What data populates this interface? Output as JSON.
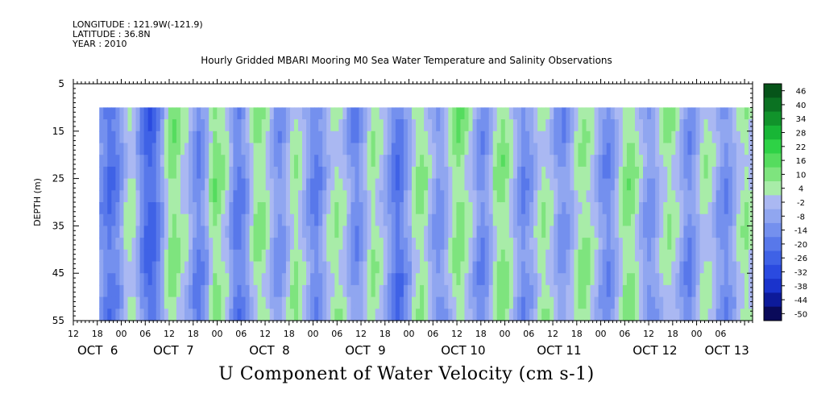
{
  "header": {
    "longitude": "LONGITUDE : 121.9W(-121.9)",
    "latitude": "LATITUDE : 36.8N",
    "year": "YEAR : 2010"
  },
  "chart_data": {
    "type": "heatmap",
    "title": "Hourly Gridded MBARI Mooring M0 Sea Water Temperature and Salinity Observations",
    "bottom_title": "U Component of Water Velocity (cm s-1)",
    "ylabel": "DEPTH (m)",
    "y_range": [
      5,
      55
    ],
    "y_ticks": [
      5,
      15,
      25,
      35,
      45,
      55
    ],
    "x_range_hours": [
      0,
      170
    ],
    "x_hour_tick_labels": [
      {
        "hour": 0,
        "label": "12"
      },
      {
        "hour": 6,
        "label": "18"
      },
      {
        "hour": 12,
        "label": "00"
      },
      {
        "hour": 18,
        "label": "06"
      },
      {
        "hour": 24,
        "label": "12"
      },
      {
        "hour": 30,
        "label": "18"
      },
      {
        "hour": 36,
        "label": "00"
      },
      {
        "hour": 42,
        "label": "06"
      },
      {
        "hour": 48,
        "label": "12"
      },
      {
        "hour": 54,
        "label": "18"
      },
      {
        "hour": 60,
        "label": "00"
      },
      {
        "hour": 66,
        "label": "06"
      },
      {
        "hour": 72,
        "label": "12"
      },
      {
        "hour": 78,
        "label": "18"
      },
      {
        "hour": 84,
        "label": "00"
      },
      {
        "hour": 90,
        "label": "06"
      },
      {
        "hour": 96,
        "label": "12"
      },
      {
        "hour": 102,
        "label": "18"
      },
      {
        "hour": 108,
        "label": "00"
      },
      {
        "hour": 114,
        "label": "06"
      },
      {
        "hour": 120,
        "label": "12"
      },
      {
        "hour": 126,
        "label": "18"
      },
      {
        "hour": 132,
        "label": "00"
      },
      {
        "hour": 138,
        "label": "06"
      },
      {
        "hour": 144,
        "label": "12"
      },
      {
        "hour": 150,
        "label": "18"
      },
      {
        "hour": 156,
        "label": "00"
      },
      {
        "hour": 162,
        "label": "06"
      }
    ],
    "x_date_labels": [
      {
        "hour": 1,
        "label": "OCT  6"
      },
      {
        "hour": 20,
        "label": "OCT  7"
      },
      {
        "hour": 44,
        "label": "OCT  8"
      },
      {
        "hour": 68,
        "label": "OCT  9"
      },
      {
        "hour": 92,
        "label": "OCT 10"
      },
      {
        "hour": 116,
        "label": "OCT 11"
      },
      {
        "hour": 140,
        "label": "OCT 12"
      },
      {
        "hour": 158,
        "label": "OCT 13"
      }
    ],
    "data_start_hour": 6.5,
    "data_end_hour": 170,
    "data_top_depth": 10,
    "colorbar": {
      "levels": [
        -50,
        -44,
        -38,
        -32,
        -26,
        -20,
        -14,
        -8,
        -2,
        4,
        10,
        16,
        22,
        28,
        34,
        40,
        46
      ],
      "labels": [
        "46",
        "40",
        "34",
        "28",
        "22",
        "16",
        "10",
        "4",
        "-2",
        "-8",
        "-14",
        "-20",
        "-26",
        "-32",
        "-38",
        "-44",
        "-50"
      ],
      "colors": [
        "#0a0a5a",
        "#0d1a9a",
        "#1a33cc",
        "#2a4ae0",
        "#3f62e6",
        "#5878ea",
        "#7490ee",
        "#90a6f0",
        "#aab8f2",
        "#a8eca8",
        "#7ee47e",
        "#55dc5e",
        "#2ed246",
        "#18b636",
        "#11932b",
        "#0b7222",
        "#065419"
      ]
    },
    "column_values_cm_s": [
      -10,
      -14,
      -18,
      -16,
      -12,
      -6,
      2,
      6,
      4,
      -4,
      -12,
      -18,
      -22,
      -20,
      -14,
      -6,
      4,
      10,
      12,
      8,
      4,
      2,
      -4,
      -10,
      -14,
      -10,
      -4,
      6,
      12,
      10,
      6,
      2,
      -6,
      -14,
      -16,
      -12,
      -6,
      2,
      8,
      10,
      8,
      4,
      -2,
      -8,
      -10,
      -6,
      0,
      6,
      8,
      4,
      0,
      -6,
      -12,
      -14,
      -10,
      -4,
      2,
      6,
      8,
      6,
      2,
      -4,
      -10,
      -12,
      -8,
      -2,
      4,
      8,
      6,
      2,
      -2,
      -8,
      -14,
      -18,
      -16,
      -10,
      -4,
      4,
      8,
      10,
      6,
      0,
      -6,
      -10,
      -8,
      -4,
      2,
      8,
      12,
      10,
      6,
      2,
      -4,
      -10,
      -12,
      -8,
      -2,
      6,
      10,
      12,
      8,
      4,
      -2,
      -8,
      -12,
      -10,
      -6,
      0,
      6,
      8,
      6,
      2,
      -4,
      -8,
      -10,
      -6,
      -2,
      4,
      8,
      10,
      8,
      4,
      0,
      -6,
      -10,
      -12,
      -8,
      -2,
      4,
      10,
      12,
      10,
      6,
      0,
      -6,
      -10,
      -8,
      -4,
      2,
      6,
      8,
      6,
      2,
      -4,
      -10,
      -12,
      -8,
      -2,
      4,
      6,
      4,
      0,
      -6,
      -10,
      -12,
      -8,
      -4,
      2,
      6,
      8,
      4
    ]
  }
}
